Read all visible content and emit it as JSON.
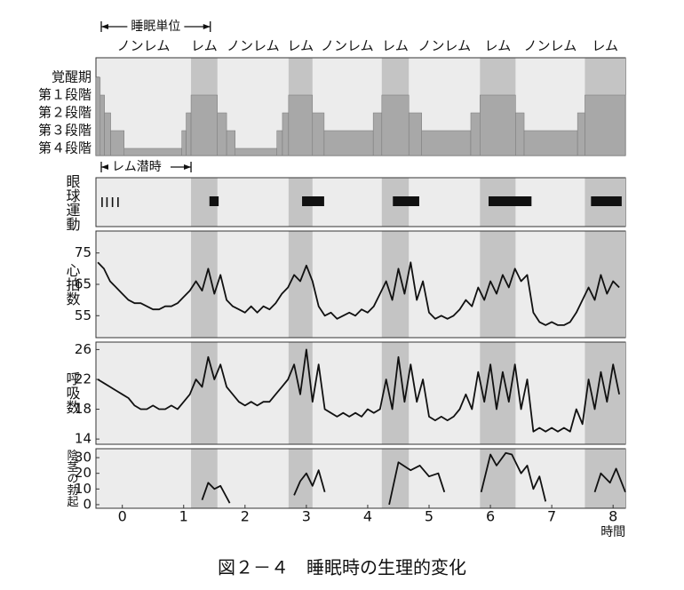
{
  "figure": {
    "caption": "図２－４　睡眠時の生理的変化",
    "cycle_label": "睡眠単位",
    "rem_latency_label": "レム潜時"
  },
  "chart_data": [
    {
      "type": "step",
      "phases": [
        {
          "label": "ノンレム",
          "start": -0.43,
          "end": 1.12
        },
        {
          "label": "レム",
          "start": 1.12,
          "end": 1.55
        },
        {
          "label": "ノンレム",
          "start": 1.55,
          "end": 2.71
        },
        {
          "label": "レム",
          "start": 2.71,
          "end": 3.1
        },
        {
          "label": "ノンレム",
          "start": 3.1,
          "end": 4.23
        },
        {
          "label": "レム",
          "start": 4.23,
          "end": 4.67
        },
        {
          "label": "ノンレム",
          "start": 4.67,
          "end": 5.83
        },
        {
          "label": "レム",
          "start": 5.83,
          "end": 6.41
        },
        {
          "label": "ノンレム",
          "start": 6.41,
          "end": 7.54
        },
        {
          "label": "レム",
          "start": 7.54,
          "end": 8.2
        }
      ],
      "x": [
        -0.43,
        -0.36,
        -0.29,
        -0.19,
        0.03,
        0.97,
        1.04,
        1.12,
        1.55,
        1.7,
        1.84,
        2.52,
        2.61,
        2.71,
        3.1,
        3.29,
        4.09,
        4.23,
        4.67,
        4.88,
        5.68,
        5.83,
        6.41,
        6.55,
        7.42,
        7.54
      ],
      "values": [
        0,
        1,
        2,
        3,
        4,
        3,
        2,
        1,
        2,
        3,
        4,
        3,
        2,
        1,
        2,
        3,
        2,
        1,
        2,
        3,
        2,
        1,
        2,
        3,
        2,
        1
      ],
      "color": "#a8a8a8",
      "xlim": [
        -0.43,
        8.2
      ],
      "ylim": [
        4.4,
        -1.1
      ],
      "yticks": [
        {
          "value": 0,
          "label": "覚醒期"
        },
        {
          "value": 1,
          "label": "第１段階"
        },
        {
          "value": 2,
          "label": "第２段階"
        },
        {
          "value": 3,
          "label": "第３段階"
        },
        {
          "value": 4,
          "label": "第４段階"
        }
      ]
    },
    {
      "type": "event",
      "y_label": "眼球運動",
      "ticks": [
        -0.33,
        -0.25,
        -0.16,
        -0.07
      ],
      "bursts": [
        [
          1.42,
          1.57
        ],
        [
          2.93,
          3.29
        ],
        [
          4.41,
          4.84
        ],
        [
          5.97,
          6.67
        ],
        [
          7.64,
          8.14
        ]
      ],
      "color": "#111111",
      "xlim": [
        -0.43,
        8.2
      ]
    },
    {
      "type": "line",
      "y_label": "心拍数",
      "x": [
        -0.4,
        -0.3,
        -0.2,
        -0.1,
        0,
        0.1,
        0.2,
        0.3,
        0.4,
        0.5,
        0.6,
        0.7,
        0.8,
        0.9,
        1,
        1.1,
        1.2,
        1.3,
        1.4,
        1.5,
        1.6,
        1.7,
        1.8,
        1.9,
        2,
        2.1,
        2.2,
        2.3,
        2.4,
        2.5,
        2.6,
        2.7,
        2.8,
        2.9,
        3,
        3.1,
        3.2,
        3.3,
        3.4,
        3.5,
        3.6,
        3.7,
        3.8,
        3.9,
        4,
        4.1,
        4.2,
        4.3,
        4.4,
        4.5,
        4.6,
        4.7,
        4.8,
        4.9,
        5,
        5.1,
        5.2,
        5.3,
        5.4,
        5.5,
        5.6,
        5.7,
        5.8,
        5.9,
        6,
        6.1,
        6.2,
        6.3,
        6.4,
        6.5,
        6.6,
        6.7,
        6.8,
        6.9,
        7,
        7.1,
        7.2,
        7.3,
        7.4,
        7.5,
        7.6,
        7.7,
        7.8,
        7.9,
        8,
        8.1
      ],
      "values": [
        72,
        70,
        66,
        64,
        62,
        60,
        59,
        59,
        58,
        57,
        57,
        58,
        58,
        59,
        61,
        63,
        66,
        63,
        70,
        62,
        68,
        60,
        58,
        57,
        56,
        58,
        56,
        58,
        57,
        59,
        62,
        64,
        68,
        66,
        71,
        66,
        58,
        55,
        56,
        54,
        55,
        56,
        55,
        57,
        56,
        58,
        62,
        66,
        60,
        70,
        62,
        72,
        60,
        66,
        56,
        54,
        55,
        54,
        55,
        57,
        60,
        58,
        64,
        60,
        66,
        62,
        68,
        64,
        70,
        66,
        68,
        56,
        53,
        52,
        53,
        52,
        52,
        53,
        56,
        60,
        64,
        60,
        68,
        62,
        66,
        64
      ],
      "color": "#111111",
      "xlim": [
        -0.43,
        8.2
      ],
      "ylim": [
        48,
        82
      ],
      "yticks": [
        55,
        65,
        75
      ]
    },
    {
      "type": "line",
      "y_label": "呼吸数",
      "x": [
        -0.4,
        -0.3,
        -0.2,
        -0.1,
        0,
        0.1,
        0.2,
        0.3,
        0.4,
        0.5,
        0.6,
        0.7,
        0.8,
        0.9,
        1,
        1.1,
        1.2,
        1.3,
        1.4,
        1.5,
        1.6,
        1.7,
        1.8,
        1.9,
        2,
        2.1,
        2.2,
        2.3,
        2.4,
        2.5,
        2.6,
        2.7,
        2.8,
        2.9,
        3,
        3.1,
        3.2,
        3.3,
        3.4,
        3.5,
        3.6,
        3.7,
        3.8,
        3.9,
        4,
        4.1,
        4.2,
        4.3,
        4.4,
        4.5,
        4.6,
        4.7,
        4.8,
        4.9,
        5,
        5.1,
        5.2,
        5.3,
        5.4,
        5.5,
        5.6,
        5.7,
        5.8,
        5.9,
        6,
        6.1,
        6.2,
        6.3,
        6.4,
        6.5,
        6.6,
        6.7,
        6.8,
        6.9,
        7,
        7.1,
        7.2,
        7.3,
        7.4,
        7.5,
        7.6,
        7.7,
        7.8,
        7.9,
        8,
        8.1
      ],
      "values": [
        22,
        21.5,
        21,
        20.5,
        20,
        19.5,
        18.5,
        18,
        18,
        18.5,
        18,
        18,
        18.5,
        18,
        19,
        20,
        22,
        21,
        25,
        22,
        24,
        21,
        20,
        19,
        18.5,
        19,
        18.5,
        19,
        19,
        20,
        21,
        22,
        24,
        20,
        26,
        19,
        24,
        18,
        17.5,
        17,
        17.5,
        17,
        17.5,
        17,
        18,
        17.5,
        18,
        22,
        18,
        25,
        19,
        24,
        19,
        22,
        17,
        16.5,
        17,
        16.5,
        17,
        18,
        20,
        18,
        23,
        19,
        24,
        18,
        23,
        19,
        24,
        18,
        22,
        15,
        15.5,
        15,
        15.5,
        15,
        15.5,
        15,
        18,
        16,
        22,
        18,
        23,
        19,
        24,
        20
      ],
      "color": "#111111",
      "xlim": [
        -0.43,
        8.2
      ],
      "ylim": [
        13.3,
        27
      ],
      "yticks": [
        14,
        18,
        22,
        26
      ]
    },
    {
      "type": "line",
      "y_label": "陰茎の勃起",
      "x": [
        1.3,
        1.4,
        1.5,
        1.6,
        1.75,
        2.3,
        2.8,
        2.9,
        3,
        3.1,
        3.2,
        3.3,
        3.9,
        4.35,
        4.5,
        4.7,
        4.85,
        5,
        5.15,
        5.25,
        5.5,
        5.85,
        6,
        6.1,
        6.25,
        6.35,
        6.5,
        6.6,
        6.7,
        6.8,
        6.9,
        7.3,
        7.7,
        7.8,
        7.95,
        8.05,
        8.2
      ],
      "values": [
        3,
        14,
        10,
        12,
        1,
        null,
        6,
        15,
        20,
        12,
        22,
        8,
        null,
        0,
        27,
        22,
        25,
        18,
        20,
        8,
        null,
        8,
        32,
        25,
        33,
        32,
        20,
        25,
        10,
        18,
        2,
        null,
        8,
        20,
        14,
        23,
        8
      ],
      "color": "#111111",
      "xlim": [
        -0.43,
        8.2
      ],
      "ylim": [
        -2.3,
        35.7
      ],
      "yticks": [
        0,
        10,
        20,
        30
      ],
      "xticks": [
        0,
        1,
        2,
        3,
        4,
        5,
        6,
        7,
        8
      ],
      "x_label": "時間"
    }
  ]
}
